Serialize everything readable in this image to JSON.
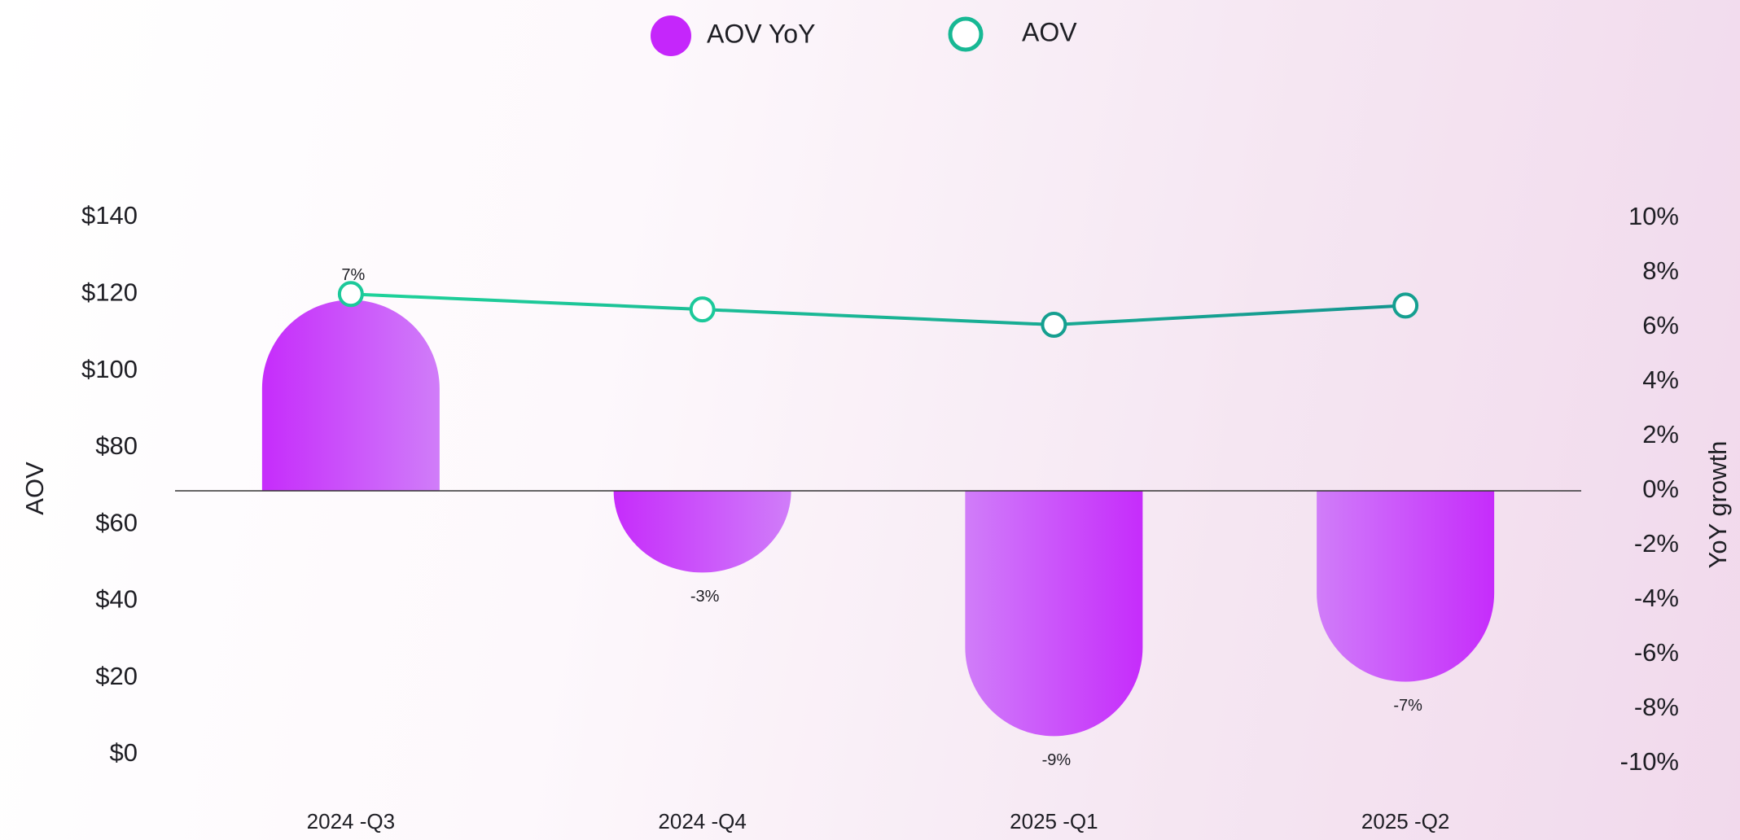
{
  "chart_data": {
    "type": "bar-line",
    "categories": [
      "2024 -Q3",
      "2024 -Q4",
      "2025 -Q1",
      "2025 -Q2"
    ],
    "ylabel": "AOV",
    "y2label": "YoY growth",
    "ylim": [
      0,
      140
    ],
    "yticks": [
      {
        "value": 0,
        "label": "$0"
      },
      {
        "value": 20,
        "label": "$20"
      },
      {
        "value": 40,
        "label": "$40"
      },
      {
        "value": 60,
        "label": "$60"
      },
      {
        "value": 80,
        "label": "$80"
      },
      {
        "value": 100,
        "label": "$100"
      },
      {
        "value": 120,
        "label": "$120"
      },
      {
        "value": 140,
        "label": "$140"
      }
    ],
    "y2lim": [
      -10,
      10
    ],
    "y2ticks": [
      {
        "value": -10,
        "label": "-10%"
      },
      {
        "value": -8,
        "label": "-8%"
      },
      {
        "value": -6,
        "label": "-6%"
      },
      {
        "value": -4,
        "label": "-4%"
      },
      {
        "value": -2,
        "label": "-2%"
      },
      {
        "value": 0,
        "label": "0%"
      },
      {
        "value": 2,
        "label": "2%"
      },
      {
        "value": 4,
        "label": "4%"
      },
      {
        "value": 6,
        "label": "6%"
      },
      {
        "value": 8,
        "label": "8%"
      },
      {
        "value": 10,
        "label": "10%"
      }
    ],
    "series": [
      {
        "name": "AOV YoY",
        "type": "bar",
        "axis": "y2",
        "color": "#c526fb",
        "values": [
          7,
          -3,
          -9,
          -7
        ],
        "value_labels": [
          "7%",
          "-3%",
          "-9%",
          "-7%"
        ]
      },
      {
        "name": "AOV",
        "type": "line",
        "axis": "y",
        "color": "#17b894",
        "values": [
          120,
          116,
          112,
          117
        ]
      }
    ]
  }
}
